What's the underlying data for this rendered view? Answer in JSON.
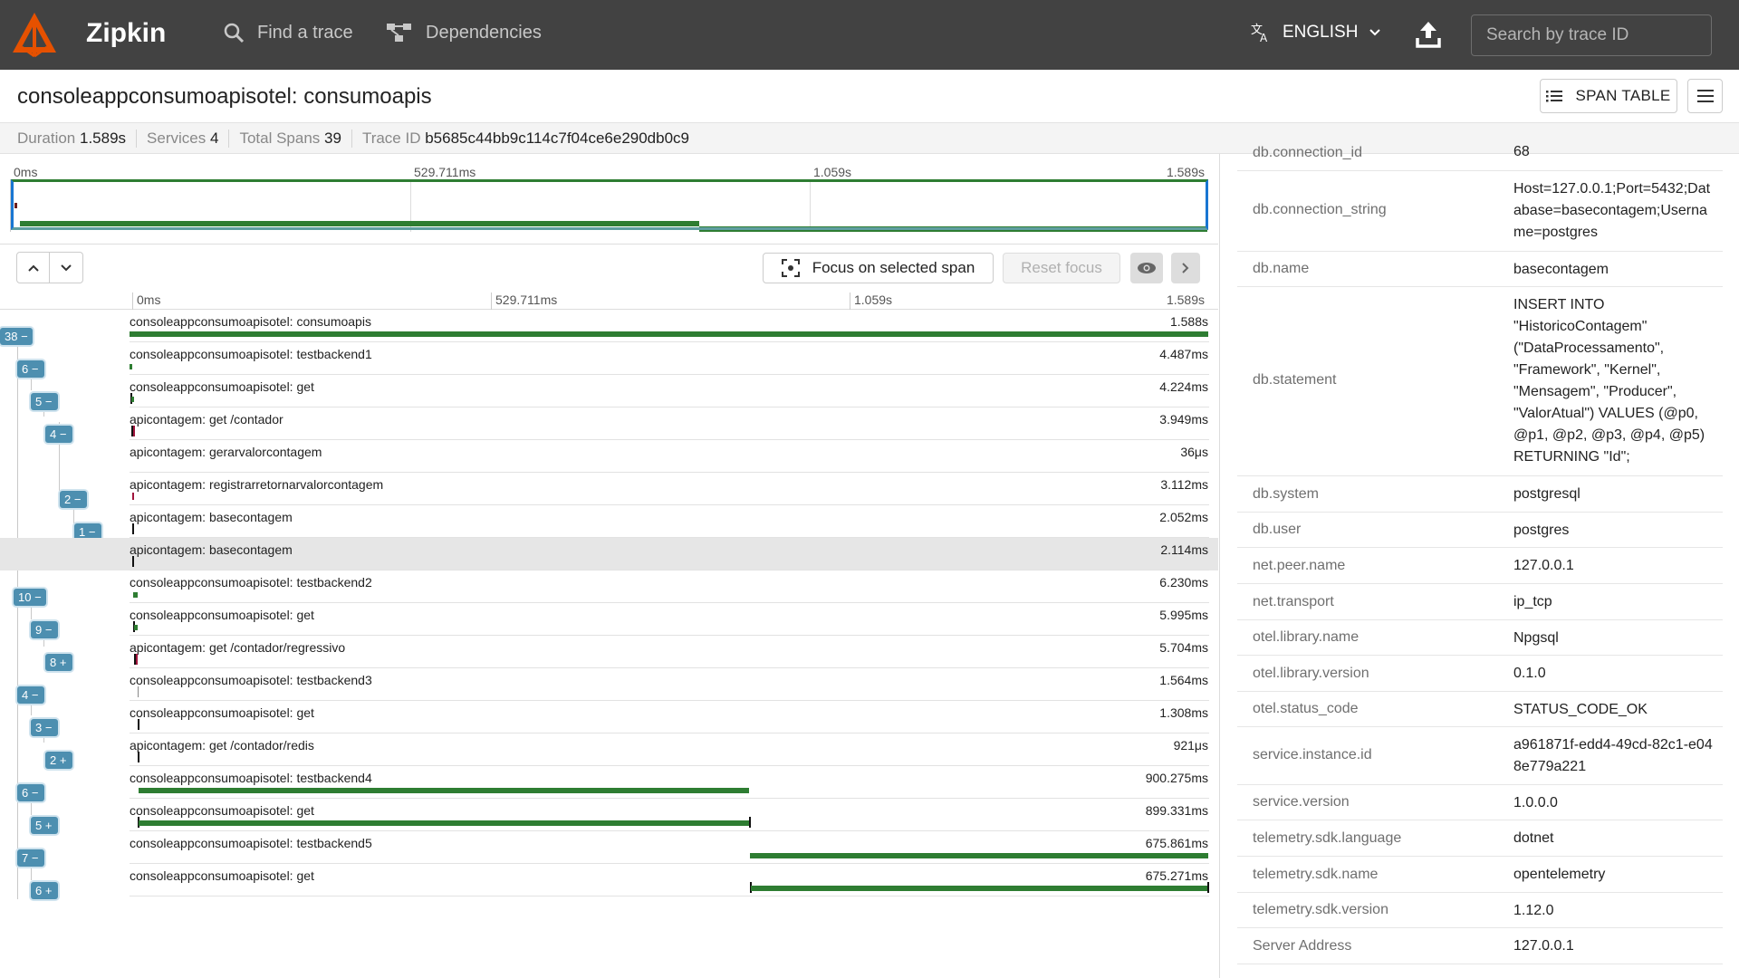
{
  "header": {
    "app_title": "Zipkin",
    "nav": [
      {
        "label": "Find a trace",
        "icon": "search-icon"
      },
      {
        "label": "Dependencies",
        "icon": "dependencies-icon"
      }
    ],
    "language": "ENGLISH",
    "search_placeholder": "Search by trace ID"
  },
  "trace": {
    "title": "consoleappconsumoapisotel: consumoapis",
    "span_table_label": "SPAN TABLE",
    "summary": {
      "duration_label": "Duration",
      "duration": "1.589s",
      "services_label": "Services",
      "services": "4",
      "spans_label": "Total Spans",
      "spans": "39",
      "traceid_label": "Trace ID",
      "trace_id": "b5685c44bb9c114c7f04ce6e290db0c9"
    }
  },
  "timeline": {
    "ticks": [
      "0ms",
      "529.711ms",
      "1.059s",
      "1.589s"
    ],
    "focus_label": "Focus on selected span",
    "reset_label": "Reset focus"
  },
  "spans": [
    {
      "name": "consoleappconsumoapisotel: consumoapis",
      "duration": "1.588s",
      "badge": "38 −"
    },
    {
      "name": "consoleappconsumoapisotel: testbackend1",
      "duration": "4.487ms",
      "badge": "6 −"
    },
    {
      "name": "consoleappconsumoapisotel: get",
      "duration": "4.224ms",
      "badge": "5 −"
    },
    {
      "name": "apicontagem: get /contador",
      "duration": "3.949ms",
      "badge": "4 −"
    },
    {
      "name": "apicontagem: gerarvalorcontagem",
      "duration": "36μs",
      "badge": ""
    },
    {
      "name": "apicontagem: registrarretornarvalorcontagem",
      "duration": "3.112ms",
      "badge": "2 −"
    },
    {
      "name": "apicontagem: basecontagem",
      "duration": "2.052ms",
      "badge": "1 −"
    },
    {
      "name": "apicontagem: basecontagem",
      "duration": "2.114ms",
      "badge": ""
    },
    {
      "name": "consoleappconsumoapisotel: testbackend2",
      "duration": "6.230ms",
      "badge": "10 −"
    },
    {
      "name": "consoleappconsumoapisotel: get",
      "duration": "5.995ms",
      "badge": "9 −"
    },
    {
      "name": "apicontagem: get /contador/regressivo",
      "duration": "5.704ms",
      "badge": "8 +"
    },
    {
      "name": "consoleappconsumoapisotel: testbackend3",
      "duration": "1.564ms",
      "badge": "4 −"
    },
    {
      "name": "consoleappconsumoapisotel: get",
      "duration": "1.308ms",
      "badge": "3 −"
    },
    {
      "name": "apicontagem: get /contador/redis",
      "duration": "921μs",
      "badge": "2 +"
    },
    {
      "name": "consoleappconsumoapisotel: testbackend4",
      "duration": "900.275ms",
      "badge": "6 −"
    },
    {
      "name": "consoleappconsumoapisotel: get",
      "duration": "899.331ms",
      "badge": "5 +"
    },
    {
      "name": "consoleappconsumoapisotel: testbackend5",
      "duration": "675.861ms",
      "badge": "7 −"
    },
    {
      "name": "consoleappconsumoapisotel: get",
      "duration": "675.271ms",
      "badge": "6 +"
    }
  ],
  "details": {
    "tags": [
      {
        "key": "db.connection_id",
        "value": "68"
      },
      {
        "key": "db.connection_string",
        "value": "Host=127.0.0.1;Port=5432;Database=basecontagem;Username=postgres"
      },
      {
        "key": "db.name",
        "value": "basecontagem"
      },
      {
        "key": "db.statement",
        "value": "INSERT INTO \"HistoricoContagem\" (\"DataProcessamento\", \"Framework\", \"Kernel\", \"Mensagem\", \"Producer\", \"ValorAtual\") VALUES (@p0, @p1, @p2, @p3, @p4, @p5) RETURNING \"Id\";"
      },
      {
        "key": "db.system",
        "value": "postgresql"
      },
      {
        "key": "db.user",
        "value": "postgres"
      },
      {
        "key": "net.peer.name",
        "value": "127.0.0.1"
      },
      {
        "key": "net.transport",
        "value": "ip_tcp"
      },
      {
        "key": "otel.library.name",
        "value": "Npgsql"
      },
      {
        "key": "otel.library.version",
        "value": "0.1.0"
      },
      {
        "key": "otel.status_code",
        "value": "STATUS_CODE_OK"
      },
      {
        "key": "service.instance.id",
        "value": "a961871f-edd4-49cd-82c1-e048e779a221"
      },
      {
        "key": "service.version",
        "value": "1.0.0.0"
      },
      {
        "key": "telemetry.sdk.language",
        "value": "dotnet"
      },
      {
        "key": "telemetry.sdk.name",
        "value": "opentelemetry"
      },
      {
        "key": "telemetry.sdk.version",
        "value": "1.12.0"
      },
      {
        "key": "Server Address",
        "value": "127.0.0.1"
      }
    ]
  },
  "colors": {
    "header": "#424242",
    "accent": "#e65100",
    "span_bar": "#2e7d32",
    "badge": "#4d8fb0"
  }
}
